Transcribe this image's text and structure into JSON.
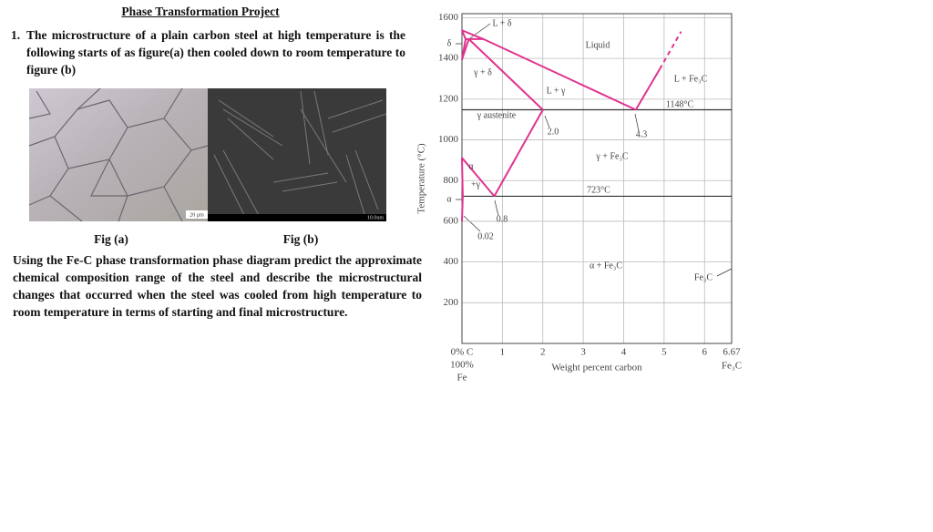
{
  "header": {
    "title": "Phase Transformation Project"
  },
  "question": {
    "number": "1.",
    "text": "The microstructure of a plain carbon steel at high temperature is the following starts of as figure(a) then cooled down to room temperature to figure (b)"
  },
  "figures": [
    {
      "caption": "Fig (a)",
      "scale_bar": "20 µm"
    },
    {
      "caption": "Fig (b)",
      "scale_bar": "10.0um"
    }
  ],
  "prompt": "Using the Fe-C phase transformation phase diagram predict the approximate chemical composition range of the steel and describe the microstructural changes that occurred when the steel was cooled from high temperature to room temperature in terms of starting and final microstructure.",
  "diagram": {
    "ylabel": "Temperature (°C)",
    "xlabel": "Weight percent carbon",
    "xlim": [
      0,
      6.67
    ],
    "ylim": [
      0,
      1620
    ],
    "xticks": [
      {
        "value": 0,
        "label": "0% C"
      },
      1,
      2,
      3,
      4,
      5,
      6,
      6.67
    ],
    "x_start_sublabels": [
      "100%",
      "Fe"
    ],
    "x_end_sublabel": "Fe₃C",
    "yticks": [
      200,
      400,
      600,
      800,
      1000,
      1200,
      1400,
      1600
    ],
    "grid": true,
    "line_color": "#e0338f",
    "isotherms": [
      {
        "value": 1148,
        "label": "1148°C"
      },
      {
        "value": 723,
        "label": "723°C"
      }
    ],
    "phase_lines": [
      {
        "x": [
          0,
          0.53,
          4.3
        ],
        "y": [
          1538,
          1495,
          1148
        ]
      },
      {
        "x": [
          0.17,
          2.0
        ],
        "y": [
          1495,
          1148
        ]
      },
      {
        "x": [
          0,
          0.09,
          0
        ],
        "y": [
          1538,
          1495,
          1394
        ]
      },
      {
        "x": [
          0.17,
          0
        ],
        "y": [
          1495,
          1394
        ]
      },
      {
        "x": [
          0.09,
          0.53
        ],
        "y": [
          1495,
          1495
        ]
      },
      {
        "x": [
          2.0,
          0.8
        ],
        "y": [
          1148,
          723
        ]
      },
      {
        "x": [
          0,
          0.8
        ],
        "y": [
          912,
          723
        ]
      },
      {
        "x": [
          0,
          0.02,
          0
        ],
        "y": [
          912,
          723,
          600
        ]
      },
      {
        "x": [
          4.3,
          4.89
        ],
        "y": [
          1148,
          1347
        ]
      }
    ],
    "dashed_line": {
      "x": [
        4.89,
        5.42
      ],
      "y": [
        1347,
        1532
      ]
    },
    "labels": [
      "L + δ",
      "δ",
      "Liquid",
      "γ + δ",
      "L + γ",
      "L + Fe₃C",
      "γ austenite",
      "2.0",
      "4.3",
      "γ + Fe₃C",
      "α",
      "+γ",
      "α",
      "0.8",
      "0.02",
      "α + Fe₃C",
      "Fe₃C"
    ]
  }
}
